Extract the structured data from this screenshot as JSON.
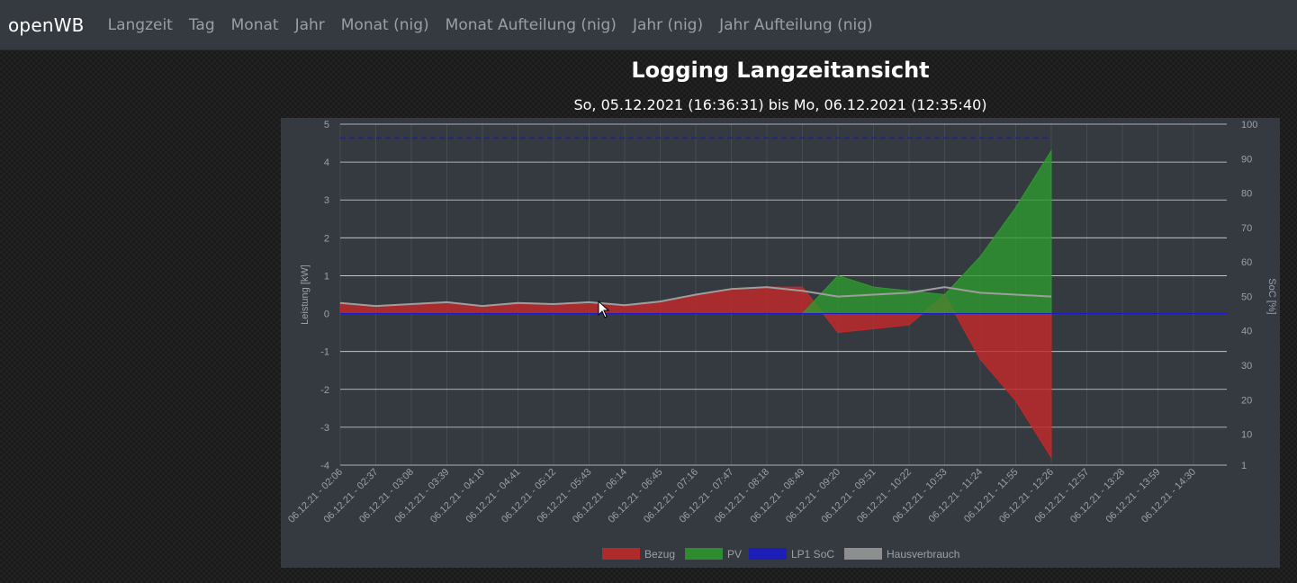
{
  "navbar": {
    "brand": "openWB",
    "links": [
      "Langzeit",
      "Tag",
      "Monat",
      "Jahr",
      "Monat (nig)",
      "Monat Aufteilung (nig)",
      "Jahr (nig)",
      "Jahr Aufteilung (nig)"
    ]
  },
  "page": {
    "title": "Logging Langzeitansicht",
    "subtitle": "So, 05.12.2021 (16:36:31) bis Mo, 06.12.2021 (12:35:40)"
  },
  "colors": {
    "bezug": "#c62828",
    "pv": "#2e9a2e",
    "soc": "#1a1acd",
    "hausverbrauch": "#9e9e9e",
    "grid": "#ffffff",
    "axis_text": "#9aa0a6"
  },
  "chart_data": {
    "type": "area",
    "ylabel": "Leistung [kW]",
    "ylabel_right": "SoC [%]",
    "ylim": [
      -4,
      5
    ],
    "yticks": [
      5,
      4,
      3,
      2,
      1,
      0,
      -1,
      -2,
      -3,
      -4
    ],
    "ylim_right": [
      1,
      100
    ],
    "yticks_right": [
      100,
      90,
      80,
      70,
      60,
      50,
      40,
      30,
      20,
      10,
      1
    ],
    "x_categories": [
      "06.12.21 - 02:06",
      "06.12.21 - 02:37",
      "06.12.21 - 03:08",
      "06.12.21 - 03:39",
      "06.12.21 - 04:10",
      "06.12.21 - 04:41",
      "06.12.21 - 05:12",
      "06.12.21 - 05:43",
      "06.12.21 - 06:14",
      "06.12.21 - 06:45",
      "06.12.21 - 07:16",
      "06.12.21 - 07:47",
      "06.12.21 - 08:18",
      "06.12.21 - 08:49",
      "06.12.21 - 09:20",
      "06.12.21 - 09:51",
      "06.12.21 - 10:22",
      "06.12.21 - 10:53",
      "06.12.21 - 11:24",
      "06.12.21 - 11:55",
      "06.12.21 - 12:26",
      "06.12.21 - 12:57",
      "06.12.21 - 13:28",
      "06.12.21 - 13:59",
      "06.12.21 - 14:30"
    ],
    "series": [
      {
        "name": "Bezug",
        "color": "#c62828",
        "values": [
          0.28,
          0.2,
          0.25,
          0.3,
          0.2,
          0.28,
          0.25,
          0.3,
          0.22,
          0.32,
          0.5,
          0.65,
          0.7,
          0.7,
          -0.5,
          -0.4,
          -0.3,
          0.5,
          -1.2,
          -2.3,
          -3.8,
          null,
          null,
          null,
          null
        ]
      },
      {
        "name": "PV",
        "color": "#2e9a2e",
        "values": [
          0,
          0,
          0,
          0,
          0,
          0,
          0,
          0,
          0,
          0,
          0,
          0,
          0,
          0,
          1.0,
          0.7,
          0.6,
          0.5,
          1.5,
          2.8,
          4.3,
          null,
          null,
          null,
          null
        ]
      },
      {
        "name": "LP1 SoC",
        "color": "#1a1acd",
        "values": [
          96,
          96,
          96,
          96,
          96,
          96,
          96,
          96,
          96,
          96,
          96,
          96,
          96,
          96,
          96,
          96,
          96,
          96,
          96,
          96,
          96,
          null,
          null,
          null,
          null
        ]
      },
      {
        "name": "Hausverbrauch",
        "color": "#9e9e9e",
        "values": [
          0.28,
          0.2,
          0.25,
          0.3,
          0.2,
          0.28,
          0.25,
          0.3,
          0.22,
          0.32,
          0.5,
          0.65,
          0.7,
          0.6,
          0.45,
          0.5,
          0.55,
          0.7,
          0.55,
          0.5,
          0.45,
          null,
          null,
          null,
          null
        ]
      }
    ],
    "legend_position": "bottom",
    "grid": true
  }
}
